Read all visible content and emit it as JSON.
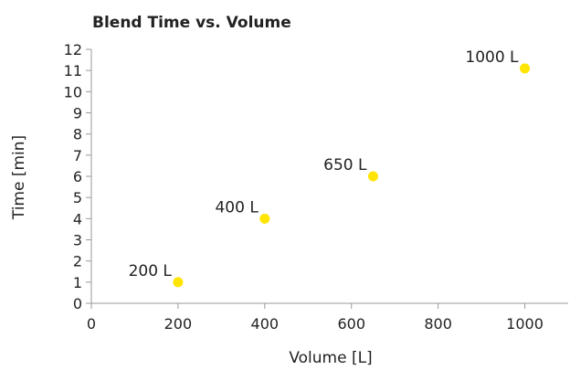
{
  "chart_data": {
    "type": "scatter",
    "title": "Blend Time vs. Volume",
    "xlabel": "Volume [L]",
    "ylabel": "Time [min]",
    "xlim": [
      0,
      1100
    ],
    "ylim": [
      0,
      12
    ],
    "xticks": [
      0,
      200,
      400,
      600,
      800,
      1000
    ],
    "yticks": [
      0,
      1,
      2,
      3,
      4,
      5,
      6,
      7,
      8,
      9,
      10,
      11,
      12
    ],
    "grid": false,
    "legend": "none",
    "marker_color": "#ffe500",
    "series": [
      {
        "x": [
          200,
          400,
          650,
          1000
        ],
        "y": [
          1,
          4,
          6,
          11.1
        ],
        "labels": [
          "200 L",
          "400 L",
          "650 L",
          "1000 L"
        ]
      }
    ]
  }
}
